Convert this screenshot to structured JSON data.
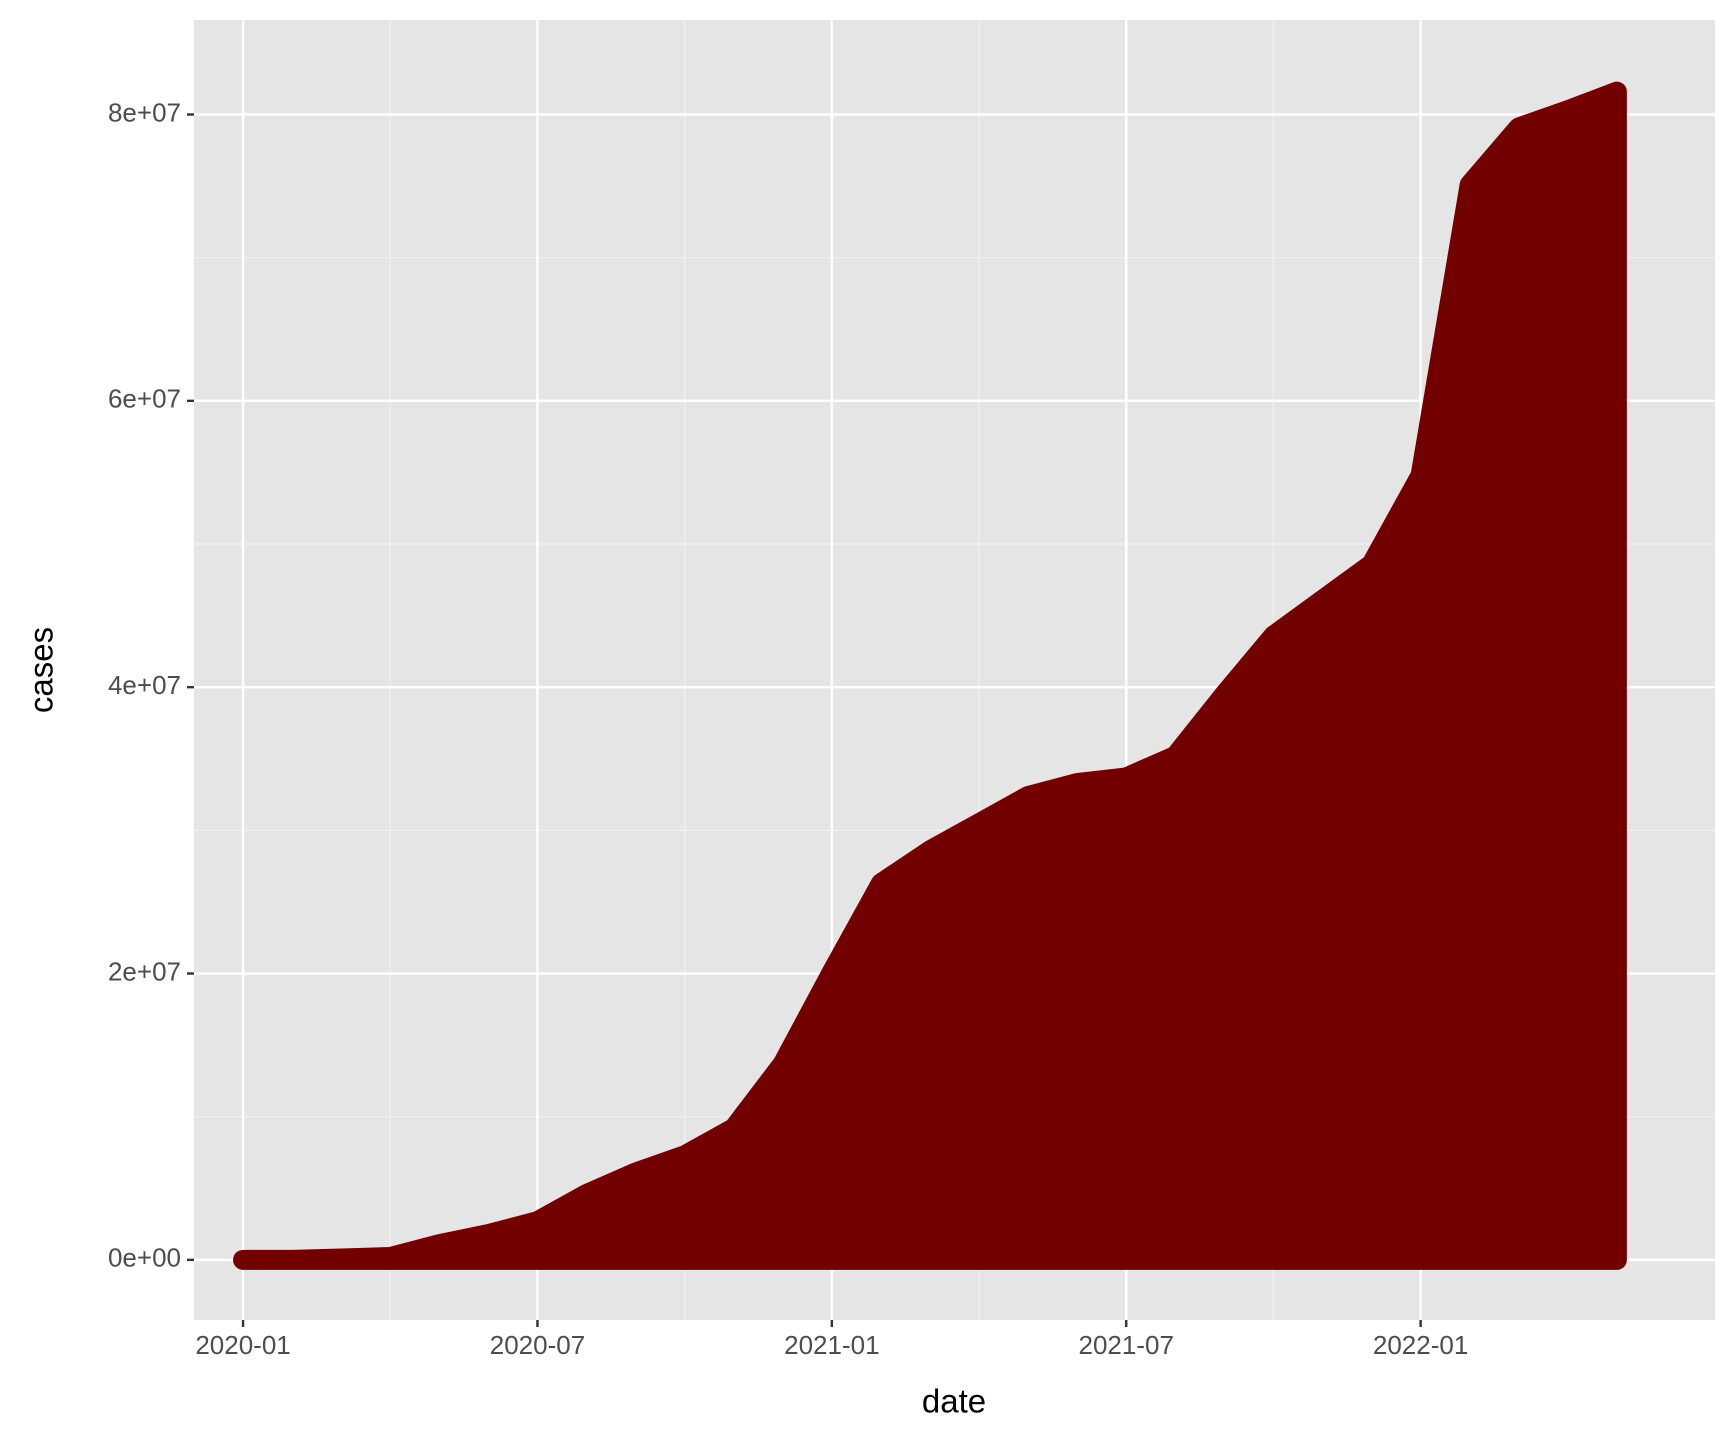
{
  "chart_data": {
    "type": "area",
    "x_label": "date",
    "y_label": "cases",
    "x": [
      "2020-01",
      "2020-02",
      "2020-03",
      "2020-04",
      "2020-05",
      "2020-06",
      "2020-07",
      "2020-08",
      "2020-09",
      "2020-10",
      "2020-11",
      "2020-12",
      "2021-01",
      "2021-02",
      "2021-03",
      "2021-04",
      "2021-05",
      "2021-06",
      "2021-07",
      "2021-08",
      "2021-09",
      "2021-10",
      "2021-11",
      "2021-12",
      "2022-01",
      "2022-02",
      "2022-03",
      "2022-04",
      "2022-05"
    ],
    "values": [
      0,
      0,
      100000,
      200000,
      1100000,
      1800000,
      2700000,
      4600000,
      6100000,
      7300000,
      9200000,
      13700000,
      20100000,
      26300000,
      28600000,
      30500000,
      32400000,
      33300000,
      33700000,
      35200000,
      39500000,
      43600000,
      46100000,
      48600000,
      54800000,
      75100000,
      79100000,
      80300000,
      81600000
    ],
    "color": "#730000",
    "xlim": [
      "2019-12",
      "2022-07"
    ],
    "xticks": [
      "2020-01",
      "2020-07",
      "2021-01",
      "2021-07",
      "2022-01"
    ],
    "ylim": [
      -4200000,
      86600000
    ],
    "yticks": [
      {
        "value": 0,
        "label": "0e+00"
      },
      {
        "value": 20000000,
        "label": "2e+07"
      },
      {
        "value": 40000000,
        "label": "4e+07"
      },
      {
        "value": 60000000,
        "label": "6e+07"
      },
      {
        "value": 80000000,
        "label": "8e+07"
      }
    ],
    "grid": true
  }
}
